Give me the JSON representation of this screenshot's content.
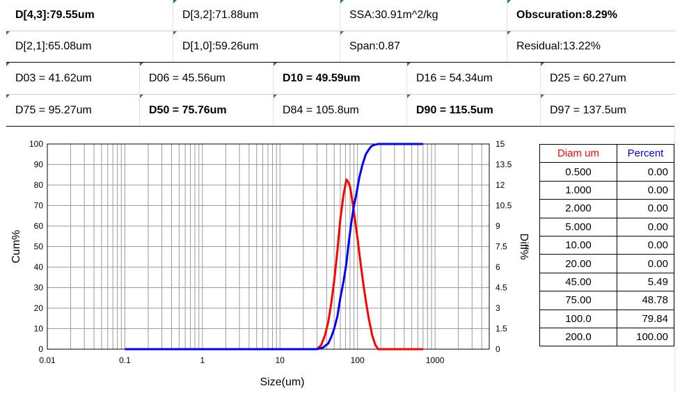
{
  "summary": {
    "row1": [
      {
        "text": "D[4,3]:79.55um",
        "bold": true
      },
      {
        "text": "D[3,2]:71.88um",
        "bold": false
      },
      {
        "text": "SSA:30.91m^2/kg",
        "bold": false
      },
      {
        "text": "Obscuration:8.29%",
        "bold": true
      }
    ],
    "row2": [
      {
        "text": "D[2,1]:65.08um",
        "bold": false
      },
      {
        "text": "D[1,0]:59.26um",
        "bold": false
      },
      {
        "text": "Span:0.87",
        "bold": false
      },
      {
        "text": "Residual:13.22%",
        "bold": false
      }
    ],
    "row3": [
      {
        "text": "D03 = 41.62um",
        "bold": false
      },
      {
        "text": "D06 = 45.56um",
        "bold": false
      },
      {
        "text": "D10 = 49.59um",
        "bold": true
      },
      {
        "text": "D16 = 54.34um",
        "bold": false
      },
      {
        "text": "D25 = 60.27um",
        "bold": false
      }
    ],
    "row4": [
      {
        "text": "D75 = 95.27um",
        "bold": false
      },
      {
        "text": "D50 = 75.76um",
        "bold": true
      },
      {
        "text": "D84 = 105.8um",
        "bold": false
      },
      {
        "text": "D90 = 115.5um",
        "bold": true
      },
      {
        "text": "D97 = 137.5um",
        "bold": false
      }
    ]
  },
  "chart_data": {
    "type": "line",
    "xlabel": "Size(um)",
    "ylabel": "Cum%",
    "y2label": "Diff%",
    "xscale": "log",
    "xlim": [
      0.01,
      5000
    ],
    "ylim": [
      0,
      100
    ],
    "y2lim": [
      0,
      15
    ],
    "xticks": [
      0.01,
      0.1,
      1,
      10,
      100,
      1000
    ],
    "xticklabels": [
      "0.01",
      "0.1",
      "1",
      "10",
      "100",
      "1000"
    ],
    "yticks": [
      "0",
      "10",
      "20",
      "30",
      "40",
      "50",
      "60",
      "70",
      "80",
      "90",
      "100"
    ],
    "y2ticks": [
      "0",
      "1.5",
      "3",
      "4.5",
      "6",
      "7.5",
      "9",
      "10.5",
      "12",
      "13.5",
      "15"
    ],
    "grid": true,
    "series": [
      {
        "role": "cumulative",
        "color": "#0000ff",
        "axis": "left",
        "x": [
          0.1,
          1,
          10,
          30,
          36,
          42,
          46,
          50,
          55,
          60,
          66,
          72,
          76,
          82,
          90,
          96,
          106,
          116,
          128,
          138,
          150,
          165,
          185,
          200,
          300,
          700
        ],
        "y": [
          0,
          0,
          0,
          0,
          0.8,
          2.8,
          6,
          10,
          16,
          25,
          33,
          42,
          50,
          60,
          70,
          75,
          84,
          90,
          95,
          97,
          98.8,
          99.6,
          100,
          100,
          100,
          100
        ]
      },
      {
        "role": "differential",
        "color": "#ff0000",
        "axis": "right",
        "x": [
          0.1,
          1,
          10,
          30,
          34,
          38,
          42,
          46,
          50,
          55,
          60,
          66,
          72,
          76,
          80,
          86,
          92,
          100,
          110,
          120,
          130,
          140,
          155,
          170,
          185,
          200,
          300,
          700
        ],
        "y": [
          0,
          0,
          0,
          0,
          0.3,
          1.0,
          2.0,
          3.4,
          5.0,
          7.2,
          9.5,
          11.3,
          12.4,
          12.2,
          11.9,
          10.8,
          9.6,
          8.1,
          6.2,
          4.6,
          3.3,
          2.2,
          1.0,
          0.3,
          0,
          0,
          0,
          0
        ]
      }
    ]
  },
  "results_table": {
    "headers": [
      "Diam um",
      "Percent"
    ],
    "header_colors": [
      "#ff0000",
      "#0000ff"
    ],
    "rows": [
      [
        "0.500",
        "0.00"
      ],
      [
        "1.000",
        "0.00"
      ],
      [
        "2.000",
        "0.00"
      ],
      [
        "5.000",
        "0.00"
      ],
      [
        "10.00",
        "0.00"
      ],
      [
        "20.00",
        "0.00"
      ],
      [
        "45.00",
        "5.49"
      ],
      [
        "75.00",
        "48.78"
      ],
      [
        "100.0",
        "79.84"
      ],
      [
        "200.0",
        "100.00"
      ]
    ]
  }
}
